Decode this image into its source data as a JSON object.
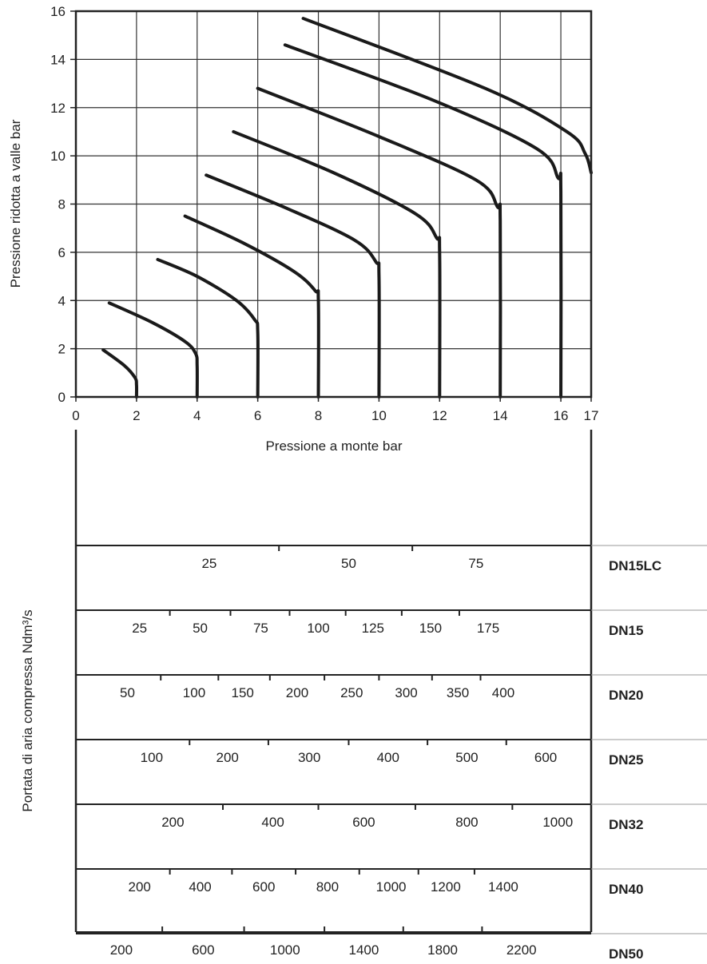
{
  "chart_data": {
    "type": "line",
    "xlabel": "Pressione a monte bar",
    "ylabel": "Pressione ridotta a valle bar",
    "xlim": [
      0,
      17
    ],
    "ylim": [
      0,
      16
    ],
    "x_ticks": [
      "0",
      "2",
      "4",
      "6",
      "8",
      "10",
      "12",
      "14",
      "16",
      "17"
    ],
    "y_ticks": [
      "0",
      "2",
      "4",
      "6",
      "8",
      "10",
      "12",
      "14",
      "16"
    ],
    "grid": true,
    "series": [
      {
        "x": [
          0.9,
          1.6,
          1.95,
          2.0,
          2.0
        ],
        "y": [
          1.95,
          1.3,
          0.8,
          0.5,
          0
        ]
      },
      {
        "x": [
          1.1,
          2.5,
          3.6,
          3.95,
          4.0,
          4.0
        ],
        "y": [
          3.9,
          3.1,
          2.3,
          1.8,
          1.3,
          0
        ]
      },
      {
        "x": [
          2.7,
          4.0,
          5.3,
          5.9,
          6.0,
          6.0
        ],
        "y": [
          5.7,
          5.0,
          4.0,
          3.2,
          2.7,
          0
        ]
      },
      {
        "x": [
          3.6,
          5.5,
          7.2,
          7.9,
          8.0,
          8.0
        ],
        "y": [
          7.5,
          6.4,
          5.2,
          4.4,
          4.0,
          0
        ]
      },
      {
        "x": [
          4.3,
          7.0,
          9.2,
          9.9,
          10.0,
          10.0
        ],
        "y": [
          9.2,
          7.8,
          6.5,
          5.6,
          5.0,
          0
        ]
      },
      {
        "x": [
          5.2,
          8.5,
          11.2,
          11.9,
          12.0,
          12.0
        ],
        "y": [
          11.0,
          9.3,
          7.6,
          6.6,
          6.0,
          0
        ]
      },
      {
        "x": [
          6.0,
          10.0,
          13.2,
          13.9,
          14.0,
          14.0
        ],
        "y": [
          12.8,
          10.8,
          9.0,
          7.9,
          7.3,
          0
        ]
      },
      {
        "x": [
          6.9,
          11.8,
          15.2,
          15.9,
          16.0,
          16.0
        ],
        "y": [
          14.6,
          12.3,
          10.3,
          9.1,
          8.5,
          0
        ]
      },
      {
        "x": [
          7.5,
          13.5,
          16.2,
          16.8,
          17.0
        ],
        "y": [
          15.7,
          12.8,
          11.0,
          10.1,
          9.3
        ]
      }
    ],
    "flow_axis": {
      "label": "Portata di aria compressa Ndm³/s",
      "bands": [
        {
          "name": "DN15LC",
          "ticks": [
            {
              "v": "25",
              "x": 4.4
            },
            {
              "v": "50",
              "x": 9.0
            },
            {
              "v": "75",
              "x": 13.2
            }
          ]
        },
        {
          "name": "DN15",
          "ticks": [
            {
              "v": "25",
              "x": 2.1
            },
            {
              "v": "50",
              "x": 4.1
            },
            {
              "v": "75",
              "x": 6.1
            },
            {
              "v": "100",
              "x": 8.0
            },
            {
              "v": "125",
              "x": 9.8
            },
            {
              "v": "150",
              "x": 11.7
            },
            {
              "v": "175",
              "x": 13.6
            }
          ]
        },
        {
          "name": "DN20",
          "ticks": [
            {
              "v": "50",
              "x": 1.7
            },
            {
              "v": "100",
              "x": 3.9
            },
            {
              "v": "150",
              "x": 5.5
            },
            {
              "v": "200",
              "x": 7.3
            },
            {
              "v": "250",
              "x": 9.1
            },
            {
              "v": "300",
              "x": 10.9
            },
            {
              "v": "350",
              "x": 12.6
            },
            {
              "v": "400",
              "x": 14.1
            }
          ]
        },
        {
          "name": "DN25",
          "ticks": [
            {
              "v": "100",
              "x": 2.5
            },
            {
              "v": "200",
              "x": 5.0
            },
            {
              "v": "300",
              "x": 7.7
            },
            {
              "v": "400",
              "x": 10.3
            },
            {
              "v": "500",
              "x": 12.9
            },
            {
              "v": "600",
              "x": 15.5
            }
          ]
        },
        {
          "name": "DN32",
          "ticks": [
            {
              "v": "200",
              "x": 3.2
            },
            {
              "v": "400",
              "x": 6.5
            },
            {
              "v": "600",
              "x": 9.5
            },
            {
              "v": "800",
              "x": 12.9
            },
            {
              "v": "1000",
              "x": 15.9
            }
          ]
        },
        {
          "name": "DN40",
          "ticks": [
            {
              "v": "200",
              "x": 2.1
            },
            {
              "v": "400",
              "x": 4.1
            },
            {
              "v": "600",
              "x": 6.2
            },
            {
              "v": "800",
              "x": 8.3
            },
            {
              "v": "1000",
              "x": 10.4
            },
            {
              "v": "1200",
              "x": 12.2
            },
            {
              "v": "1400",
              "x": 14.1
            }
          ]
        },
        {
          "name": "DN50",
          "ticks": [
            {
              "v": "200",
              "x": 1.5
            },
            {
              "v": "600",
              "x": 4.2
            },
            {
              "v": "1000",
              "x": 6.9
            },
            {
              "v": "1400",
              "x": 9.5
            },
            {
              "v": "1800",
              "x": 12.1
            },
            {
              "v": "2200",
              "x": 14.7
            }
          ]
        }
      ]
    }
  }
}
